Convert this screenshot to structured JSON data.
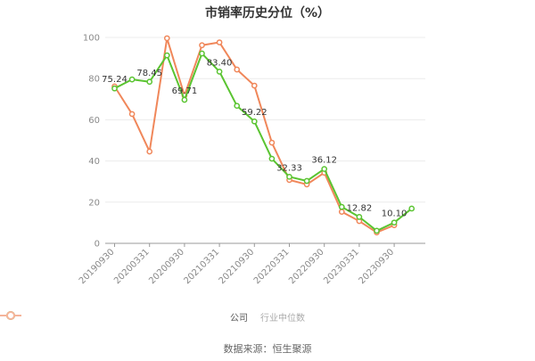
{
  "chart_data": {
    "type": "line",
    "title": "市销率历史分位（%）",
    "xlabel": "",
    "ylabel": "",
    "ylim": [
      0,
      100
    ],
    "yticks": [
      0,
      20,
      40,
      60,
      80,
      100
    ],
    "grid": true,
    "legend_position": "bottom",
    "x": [
      "20190930",
      "20191231",
      "20200331",
      "20200630",
      "20200930",
      "20201231",
      "20210331",
      "20210630",
      "20210930",
      "20211231",
      "20220331",
      "20220630",
      "20220930",
      "20221231",
      "20230331",
      "20230630",
      "20230930",
      "20231231"
    ],
    "xtick_labels": [
      "20190930",
      "20200331",
      "20200930",
      "20210331",
      "20210930",
      "20220331",
      "20220930",
      "20230331",
      "20230930"
    ],
    "series": [
      {
        "name": "公司",
        "color": "#5ac431",
        "values": [
          75.24,
          79.6,
          78.45,
          91.3,
          69.71,
          92.2,
          83.4,
          66.8,
          59.22,
          41.1,
          32.33,
          30.3,
          36.12,
          17.7,
          12.82,
          6.1,
          10.1,
          16.9
        ]
      },
      {
        "name": "行业中位数",
        "color": "#f0875a",
        "values": [
          76.2,
          62.8,
          44.6,
          99.6,
          71.8,
          96.2,
          97.6,
          84.4,
          76.6,
          48.9,
          30.8,
          28.6,
          34.3,
          15.3,
          10.8,
          5.3,
          8.8,
          null
        ]
      }
    ],
    "annotations": [
      {
        "series": 0,
        "index": 0,
        "text": "75.24"
      },
      {
        "series": 0,
        "index": 2,
        "text": "78.45"
      },
      {
        "series": 0,
        "index": 4,
        "text": "69.71"
      },
      {
        "series": 0,
        "index": 6,
        "text": "83.40"
      },
      {
        "series": 0,
        "index": 8,
        "text": "59.22"
      },
      {
        "series": 0,
        "index": 10,
        "text": "32.33"
      },
      {
        "series": 0,
        "index": 12,
        "text": "36.12"
      },
      {
        "series": 0,
        "index": 14,
        "text": "12.82"
      },
      {
        "series": 0,
        "index": 16,
        "text": "10.10"
      }
    ]
  },
  "legend": {
    "items": [
      {
        "label": "公司",
        "color": "#5ac431"
      },
      {
        "label": "行业中位数",
        "color": "#f0a080"
      }
    ]
  },
  "source": "数据来源：恒生聚源"
}
